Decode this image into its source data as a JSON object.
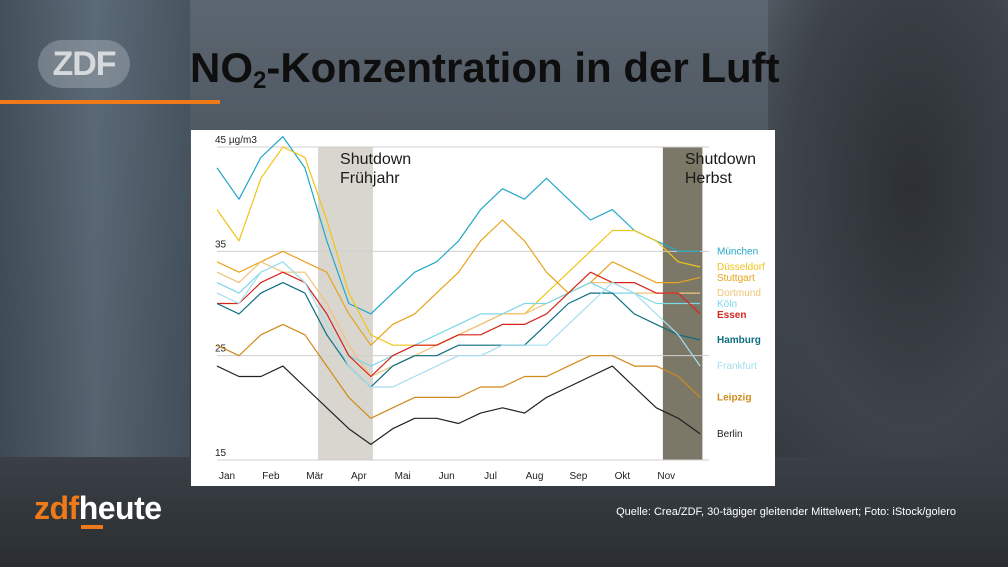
{
  "header": {
    "title_before": "NO",
    "title_sub": "2",
    "title_after": "-Konzentration in der Luft",
    "logo": "ZDF"
  },
  "brand": {
    "part1": "zdf",
    "part2": "heute"
  },
  "source": "Quelle: Crea/ZDF, 30-tägiger gleitender Mittelwert; Foto: iStock/golero",
  "colors": {
    "accent": "#f07a18"
  },
  "chart_data": {
    "type": "line",
    "title": "NO2-Konzentration in der Luft",
    "unit_label": "45 µg/m3",
    "xlabel": "",
    "ylabel": "",
    "ylim": [
      15,
      45
    ],
    "xlim": [
      0,
      11.2
    ],
    "y_ticks": [
      {
        "value": 45,
        "label": "45 µg/m3"
      },
      {
        "value": 35,
        "label": "35"
      },
      {
        "value": 25,
        "label": "25"
      },
      {
        "value": 15,
        "label": "15"
      }
    ],
    "x_ticks": [
      {
        "value": 0.0,
        "label": "Jan"
      },
      {
        "value": 1.0,
        "label": "Feb"
      },
      {
        "value": 2.0,
        "label": "Mär"
      },
      {
        "value": 3.0,
        "label": "Apr"
      },
      {
        "value": 4.0,
        "label": "Mai"
      },
      {
        "value": 5.0,
        "label": "Jun"
      },
      {
        "value": 6.0,
        "label": "Jul"
      },
      {
        "value": 7.0,
        "label": "Aug"
      },
      {
        "value": 8.0,
        "label": "Sep"
      },
      {
        "value": 9.0,
        "label": "Okt"
      },
      {
        "value": 10.0,
        "label": "Nov"
      }
    ],
    "grid": "horizontal",
    "shaded_periods": [
      {
        "label_line1": "Shutdown",
        "label_line2": "Frühjahr",
        "x_start": 2.3,
        "x_end": 3.55,
        "color": "#d9d6cf"
      },
      {
        "label_line1": "Shutdown",
        "label_line2": "Herbst",
        "x_start": 10.15,
        "x_end": 11.05,
        "color": "#7c7868"
      }
    ],
    "x": [
      0,
      0.5,
      1,
      1.5,
      2,
      2.5,
      3,
      3.5,
      4,
      4.5,
      5,
      5.5,
      6,
      6.5,
      7,
      7.5,
      8,
      8.5,
      9,
      9.5,
      10,
      10.5,
      11
    ],
    "series": [
      {
        "name": "München",
        "color": "#22a8c8",
        "values": [
          43,
          40,
          44,
          46,
          43,
          36,
          30,
          29,
          31,
          33,
          34,
          36,
          39,
          41,
          40,
          42,
          40,
          38,
          39,
          37,
          36,
          35,
          35
        ]
      },
      {
        "name": "Düsseldorf",
        "color": "#f0c419",
        "values": [
          39,
          36,
          42,
          45,
          44,
          38,
          31,
          27,
          26,
          26,
          26,
          27,
          28,
          29,
          29,
          31,
          33,
          35,
          37,
          37,
          36,
          34,
          33.5
        ]
      },
      {
        "name": "Stuttgart",
        "color": "#e8a31c",
        "values": [
          34,
          33,
          34,
          35,
          34,
          33,
          29,
          26,
          28,
          29,
          31,
          33,
          36,
          38,
          36,
          33,
          31,
          32,
          34,
          33,
          32,
          32,
          32.5
        ]
      },
      {
        "name": "Dortmund",
        "color": "#f2c27a",
        "values": [
          33,
          32,
          34,
          33,
          33,
          30,
          26,
          23,
          24,
          25,
          26,
          27,
          28,
          29,
          29,
          30,
          31,
          32,
          32,
          31,
          31,
          31,
          31
        ]
      },
      {
        "name": "Köln",
        "color": "#7dd6e8",
        "values": [
          32,
          31,
          33,
          34,
          32,
          29,
          25,
          24,
          25,
          26,
          27,
          28,
          29,
          29,
          30,
          30,
          31,
          32,
          31,
          31,
          30,
          30,
          30
        ]
      },
      {
        "name": "Essen",
        "color": "#d7261b",
        "values": [
          30,
          30,
          32,
          33,
          32,
          29,
          25,
          23,
          25,
          26,
          26,
          27,
          27,
          28,
          28,
          29,
          31,
          33,
          32,
          32,
          31,
          31,
          29
        ]
      },
      {
        "name": "Hamburg",
        "color": "#0d6e80",
        "values": [
          30,
          29,
          31,
          32,
          31,
          27,
          24,
          22,
          24,
          25,
          25,
          26,
          26,
          26,
          26,
          28,
          30,
          31,
          31,
          29,
          28,
          27,
          26.5
        ]
      },
      {
        "name": "Frankfurt",
        "color": "#a3dff0",
        "values": [
          31,
          30,
          33,
          34,
          32,
          28,
          24,
          22,
          22,
          23,
          24,
          25,
          25,
          26,
          26,
          26,
          28,
          30,
          32,
          31,
          29,
          27,
          24
        ]
      },
      {
        "name": "Leipzig",
        "color": "#d08a1a",
        "values": [
          26,
          25,
          27,
          28,
          27,
          24,
          21,
          19,
          20,
          21,
          21,
          21,
          22,
          22,
          23,
          23,
          24,
          25,
          25,
          24,
          24,
          23,
          21
        ]
      },
      {
        "name": "Berlin",
        "color": "#222222",
        "values": [
          24,
          23,
          23,
          24,
          22,
          20,
          18,
          16.5,
          18,
          19,
          19,
          18.5,
          19.5,
          20,
          19.5,
          21,
          22,
          23,
          24,
          22,
          20,
          19,
          17.5
        ]
      }
    ]
  }
}
